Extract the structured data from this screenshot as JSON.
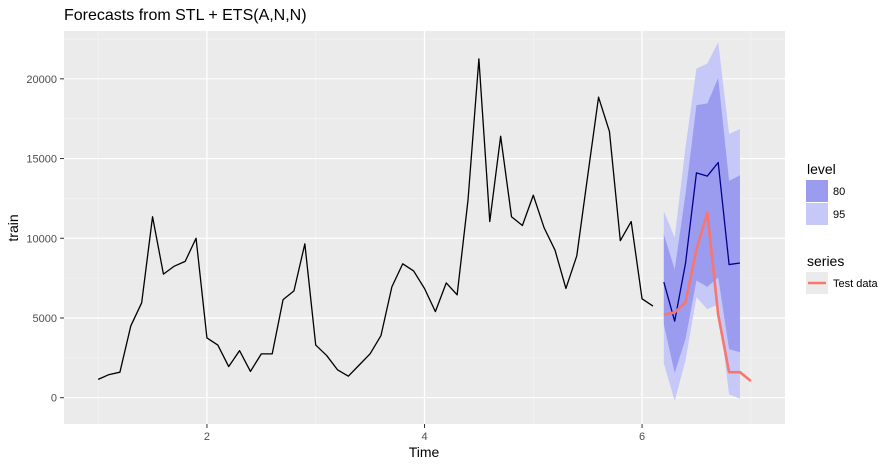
{
  "chart_data": {
    "type": "line",
    "title": "Forecasts from STL +  ETS(A,N,N)",
    "xlabel": "Time",
    "ylabel": "train",
    "xlim": [
      0.686,
      7.314
    ],
    "ylim": [
      -1650,
      23000
    ],
    "x_ticks": [
      2,
      4,
      6
    ],
    "y_ticks": [
      0,
      5000,
      10000,
      15000,
      20000
    ],
    "grid": true,
    "legend_position": "right",
    "colors": {
      "panel": "#ebebeb",
      "grid_major": "#ffffff",
      "history_line": "#000000",
      "forecast_line": "#00008b",
      "band_80": "#9b9cf0",
      "band_95": "#c6c8f8",
      "test_line": "#f8766d"
    },
    "history": {
      "x": [
        1.0,
        1.1,
        1.2,
        1.3,
        1.4,
        1.5,
        1.6,
        1.7,
        1.8,
        1.9,
        2.0,
        2.1,
        2.2,
        2.3,
        2.4,
        2.5,
        2.6,
        2.7,
        2.8,
        2.9,
        3.0,
        3.1,
        3.2,
        3.3,
        3.4,
        3.5,
        3.6,
        3.7,
        3.8,
        3.9,
        4.0,
        4.1,
        4.2,
        4.3,
        4.4,
        4.5,
        4.6,
        4.7,
        4.8,
        4.9,
        5.0,
        5.1,
        5.2,
        5.3,
        5.4,
        5.5,
        5.6,
        5.7,
        5.8,
        5.9,
        6.0,
        6.1
      ],
      "y": [
        1150,
        1450,
        1600,
        4500,
        5950,
        11350,
        7750,
        8250,
        8550,
        10000,
        3750,
        3300,
        1950,
        2950,
        1650,
        2750,
        2750,
        6150,
        6700,
        9650,
        3300,
        2650,
        1750,
        1350,
        2050,
        2750,
        3900,
        6950,
        8400,
        7950,
        6850,
        5400,
        7200,
        6450,
        12400,
        21250,
        11050,
        16400,
        11350,
        10800,
        12700,
        10650,
        9250,
        6850,
        8900,
        13900,
        18850,
        16700,
        9850,
        11050,
        6200,
        5750
      ]
    },
    "forecast": {
      "x": [
        6.2,
        6.3,
        6.4,
        6.5,
        6.6,
        6.7,
        6.8,
        6.9
      ],
      "mean": [
        7250,
        4800,
        8450,
        14100,
        13900,
        14750,
        8350,
        8450
      ],
      "lo80": [
        4600,
        1550,
        3700,
        7350,
        6950,
        7550,
        3050,
        2850
      ],
      "hi80": [
        10250,
        8050,
        12800,
        18350,
        18450,
        20050,
        13600,
        13950
      ],
      "lo95": [
        2150,
        -200,
        2350,
        6300,
        5550,
        5850,
        200,
        -50
      ],
      "hi95": [
        11700,
        10050,
        15750,
        20650,
        20950,
        22300,
        16550,
        16850
      ]
    },
    "test": {
      "x": [
        6.2,
        6.3,
        6.4,
        6.5,
        6.6,
        6.7,
        6.8,
        6.9,
        7.0
      ],
      "y": [
        5200,
        5350,
        6000,
        9300,
        11600,
        5200,
        1600,
        1600,
        1050
      ]
    },
    "legend": {
      "level_title": "level",
      "level_items": [
        "80",
        "95"
      ],
      "series_title": "series",
      "series_items": [
        "Test data"
      ]
    }
  }
}
